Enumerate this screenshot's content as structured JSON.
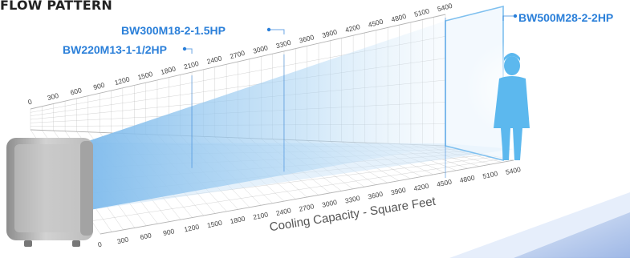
{
  "header": {
    "title": "FLOW PATTERN"
  },
  "models": [
    {
      "name": "BW220M13-1-1/2HP",
      "coverage": 2100
    },
    {
      "name": "BW300M18-2-1.5HP",
      "coverage": 3300
    },
    {
      "name": "BW500M28-2-2HP",
      "coverage": 5400
    }
  ],
  "axis": {
    "label": "Cooling Capacity - Square Feet",
    "ticks": [
      0,
      300,
      600,
      900,
      1200,
      1500,
      1800,
      2100,
      2400,
      2700,
      3000,
      3300,
      3600,
      3900,
      4200,
      4500,
      4800,
      5100,
      5400
    ],
    "max": 5400
  },
  "colors": {
    "accent": "#2a7fd9",
    "person": "#5cb8ee",
    "airflow": "#8fc7f0",
    "grid": "#b0b0b0"
  },
  "icons": {
    "unit": "air-cooler-unit-icon",
    "person": "standing-person-icon"
  }
}
